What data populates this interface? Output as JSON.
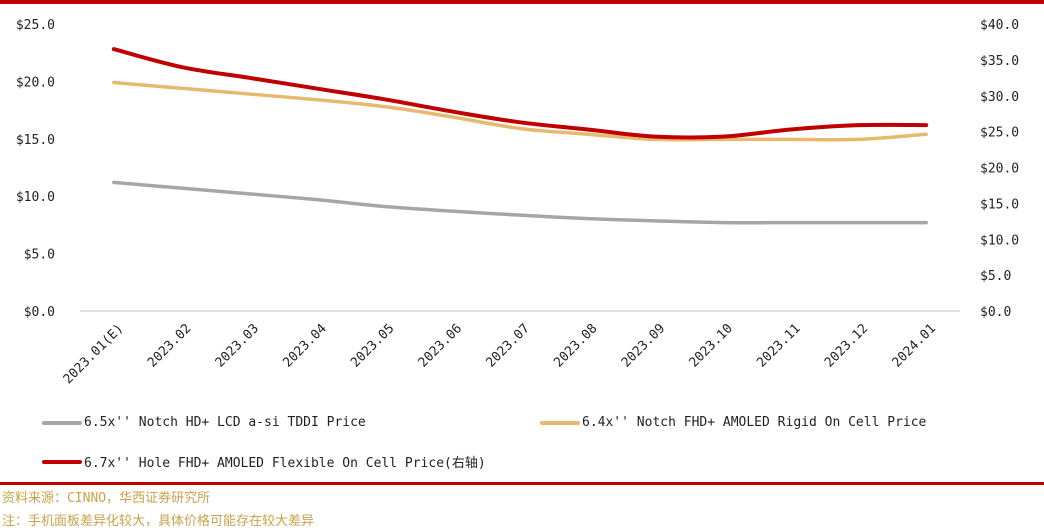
{
  "chart_data": {
    "type": "line",
    "categories": [
      "2023.01(E)",
      "2023.02",
      "2023.03",
      "2023.04",
      "2023.05",
      "2023.06",
      "2023.07",
      "2023.08",
      "2023.09",
      "2023.10",
      "2023.11",
      "2023.12",
      "2024.01"
    ],
    "y_left": {
      "ylim": [
        0,
        25
      ],
      "ticks": [
        "$0.0",
        "$5.0",
        "$10.0",
        "$15.0",
        "$20.0",
        "$25.0"
      ]
    },
    "y_right": {
      "ylim": [
        0,
        40
      ],
      "ticks": [
        "$0.0",
        "$5.0",
        "$10.0",
        "$15.0",
        "$20.0",
        "$25.0",
        "$30.0",
        "$35.0",
        "$40.0"
      ]
    },
    "series": [
      {
        "name": "6.5x'' Notch HD+ LCD a-si TDDI Price",
        "axis": "left",
        "color": "#a6a6a6",
        "values": [
          11.2,
          10.7,
          10.2,
          9.7,
          9.1,
          8.7,
          8.35,
          8.05,
          7.85,
          7.7,
          7.7,
          7.7,
          7.7
        ]
      },
      {
        "name": "6.4x'' Notch FHD+ AMOLED Rigid On Cell Price",
        "axis": "left",
        "color": "#e6b96e",
        "values": [
          19.9,
          19.4,
          18.9,
          18.4,
          17.8,
          16.9,
          15.9,
          15.4,
          14.95,
          14.95,
          14.95,
          14.95,
          15.4
        ]
      },
      {
        "name": "6.7x'' Hole FHD+ AMOLED Flexible On Cell Price(右轴)",
        "axis": "right",
        "color": "#c00000",
        "values": [
          36.5,
          34.0,
          32.5,
          31.0,
          29.5,
          27.8,
          26.3,
          25.3,
          24.3,
          24.3,
          25.3,
          25.9,
          25.9
        ]
      }
    ],
    "grid": false,
    "legend_position": "bottom"
  },
  "footer": {
    "source": "资料来源：CINNO，华西证券研究所",
    "note": "注：手机面板差异化较大，具体价格可能存在较大差异"
  },
  "colors": {
    "accent_red": "#c00000",
    "note_gold": "#c9a24a"
  }
}
